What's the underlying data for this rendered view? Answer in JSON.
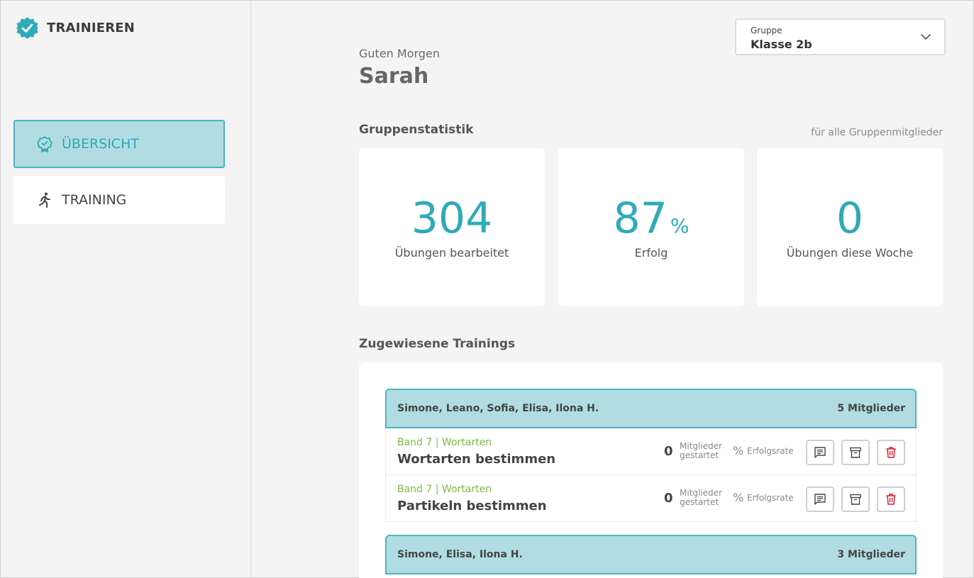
{
  "app": {
    "title": "TRAINIEREN",
    "logo_icon": "badge-check-icon"
  },
  "nav": {
    "items": [
      {
        "label": "ÜBERSICHT",
        "icon": "badge-icon",
        "active": true
      },
      {
        "label": "TRAINING",
        "icon": "runner-icon",
        "active": false
      }
    ]
  },
  "header": {
    "greeting": "Guten Morgen",
    "user_name": "Sarah",
    "group_select": {
      "label": "Gruppe",
      "value": "Klasse 2b"
    }
  },
  "stats": {
    "title": "Gruppenstatistik",
    "hint": "für alle Gruppenmitglieder",
    "cards": [
      {
        "value": "304",
        "unit": "",
        "label": "Übungen bearbeitet"
      },
      {
        "value": "87",
        "unit": "%",
        "label": "Erfolg"
      },
      {
        "value": "0",
        "unit": "",
        "label": "Übungen diese Woche"
      }
    ]
  },
  "trainings": {
    "title": "Zugewiesene Trainings",
    "groups": [
      {
        "members": "Simone, Leano, Sofia, Elisa, Ilona H.",
        "count_label": "5 Mitglieder",
        "items": [
          {
            "category": "Band 7 | Wortarten",
            "name": "Wortarten bestimmen",
            "started": "0",
            "started_label_1": "Mitglieder",
            "started_label_2": "gestartet",
            "rate_symbol": "%",
            "rate_label": "Erfolgsrate"
          },
          {
            "category": "Band 7 | Wortarten",
            "name": "Partikeln bestimmen",
            "started": "0",
            "started_label_1": "Mitglieder",
            "started_label_2": "gestartet",
            "rate_symbol": "%",
            "rate_label": "Erfolgsrate"
          }
        ]
      },
      {
        "members": "Simone, Elisa, Ilona H.",
        "count_label": "3 Mitglieder",
        "items": []
      }
    ]
  },
  "colors": {
    "accent": "#2faab8",
    "accent_light": "#b1dde2",
    "category_green": "#7cbd42",
    "delete_red": "#e0192d"
  }
}
